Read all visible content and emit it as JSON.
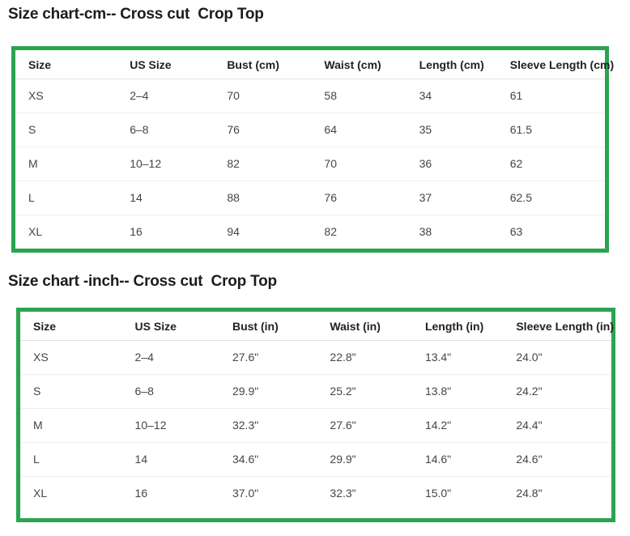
{
  "colors": {
    "table_border_green": "#2aa44f",
    "title_text": "#1c1c1c",
    "header_text": "#222222",
    "cell_text": "#454545"
  },
  "cm": {
    "title": "Size chart-cm-- Cross cut  Crop Top",
    "headers": [
      "Size",
      "US Size",
      "Bust (cm)",
      "Waist (cm)",
      "Length (cm)",
      "Sleeve Length (cm)"
    ],
    "rows": [
      [
        "XS",
        "2–4",
        "70",
        "58",
        "34",
        "61"
      ],
      [
        "S",
        "6–8",
        "76",
        "64",
        "35",
        "61.5"
      ],
      [
        "M",
        "10–12",
        "82",
        "70",
        "36",
        "62"
      ],
      [
        "L",
        "14",
        "88",
        "76",
        "37",
        "62.5"
      ],
      [
        "XL",
        "16",
        "94",
        "82",
        "38",
        "63"
      ]
    ]
  },
  "inch": {
    "title": "Size chart -inch-- Cross cut  Crop Top",
    "headers": [
      "Size",
      "US Size",
      "Bust (in)",
      "Waist (in)",
      "Length (in)",
      "Sleeve Length (in)"
    ],
    "rows": [
      [
        "XS",
        "2–4",
        "27.6\"",
        "22.8\"",
        "13.4\"",
        "24.0\""
      ],
      [
        "S",
        "6–8",
        "29.9\"",
        "25.2\"",
        "13.8\"",
        "24.2\""
      ],
      [
        "M",
        "10–12",
        "32.3\"",
        "27.6\"",
        "14.2\"",
        "24.4\""
      ],
      [
        "L",
        "14",
        "34.6\"",
        "29.9\"",
        "14.6\"",
        "24.6\""
      ],
      [
        "XL",
        "16",
        "37.0\"",
        "32.3\"",
        "15.0\"",
        "24.8\""
      ]
    ]
  }
}
